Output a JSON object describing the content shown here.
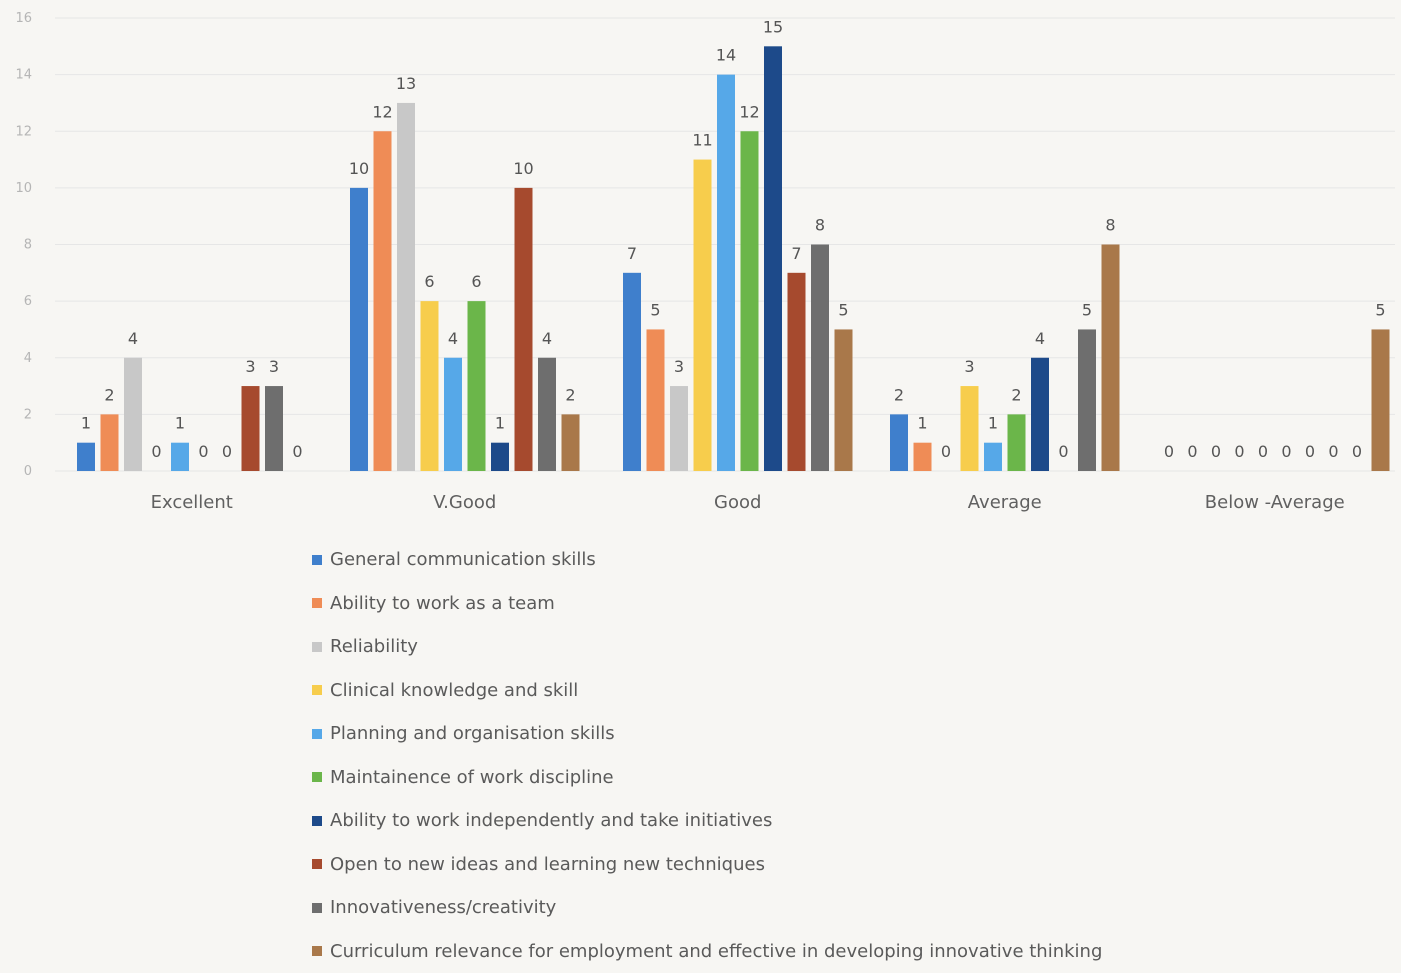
{
  "chart_data": {
    "type": "bar",
    "title": "",
    "xlabel": "",
    "ylabel": "",
    "ylim": [
      0,
      16
    ],
    "yticks": [
      0,
      2,
      4,
      6,
      8,
      10,
      12,
      14,
      16
    ],
    "ytick_labels": [
      "0",
      "2",
      "4",
      "6",
      "8",
      "10",
      "12",
      "14",
      "16"
    ],
    "grid": true,
    "legend_position": "bottom",
    "categories": [
      "Excellent",
      "V.Good",
      "Good",
      "Average",
      "Below -Average"
    ],
    "series": [
      {
        "name": "General communication skills",
        "color": "#3f7fcc",
        "values": [
          1,
          10,
          7,
          2,
          0
        ]
      },
      {
        "name": "Ability to work as a team",
        "color": "#ef8c56",
        "values": [
          2,
          12,
          5,
          1,
          0
        ]
      },
      {
        "name": "Reliability",
        "color": "#c8c8c8",
        "values": [
          4,
          13,
          3,
          0,
          0
        ]
      },
      {
        "name": "Clinical knowledge and skill",
        "color": "#f7cd4c",
        "values": [
          0,
          6,
          11,
          3,
          0
        ]
      },
      {
        "name": "Planning and organisation skills",
        "color": "#56a8e8",
        "values": [
          1,
          4,
          14,
          1,
          0
        ]
      },
      {
        "name": "Maintainence of work discipline",
        "color": "#6bb64a",
        "values": [
          0,
          6,
          12,
          2,
          0
        ]
      },
      {
        "name": "Ability to work independently and take initiatives",
        "color": "#1d4a8a",
        "values": [
          0,
          1,
          15,
          4,
          0
        ]
      },
      {
        "name": "Open to new ideas and learning new techniques",
        "color": "#a64a2e",
        "values": [
          3,
          10,
          7,
          0,
          0
        ]
      },
      {
        "name": "Innovativeness/creativity",
        "color": "#6e6e6e",
        "values": [
          3,
          4,
          8,
          5,
          0
        ]
      },
      {
        "name": "Curriculum relevance for employment and effective in developing innovative thinking",
        "color": "#a9784a",
        "values": [
          0,
          2,
          5,
          8,
          5
        ]
      }
    ]
  }
}
